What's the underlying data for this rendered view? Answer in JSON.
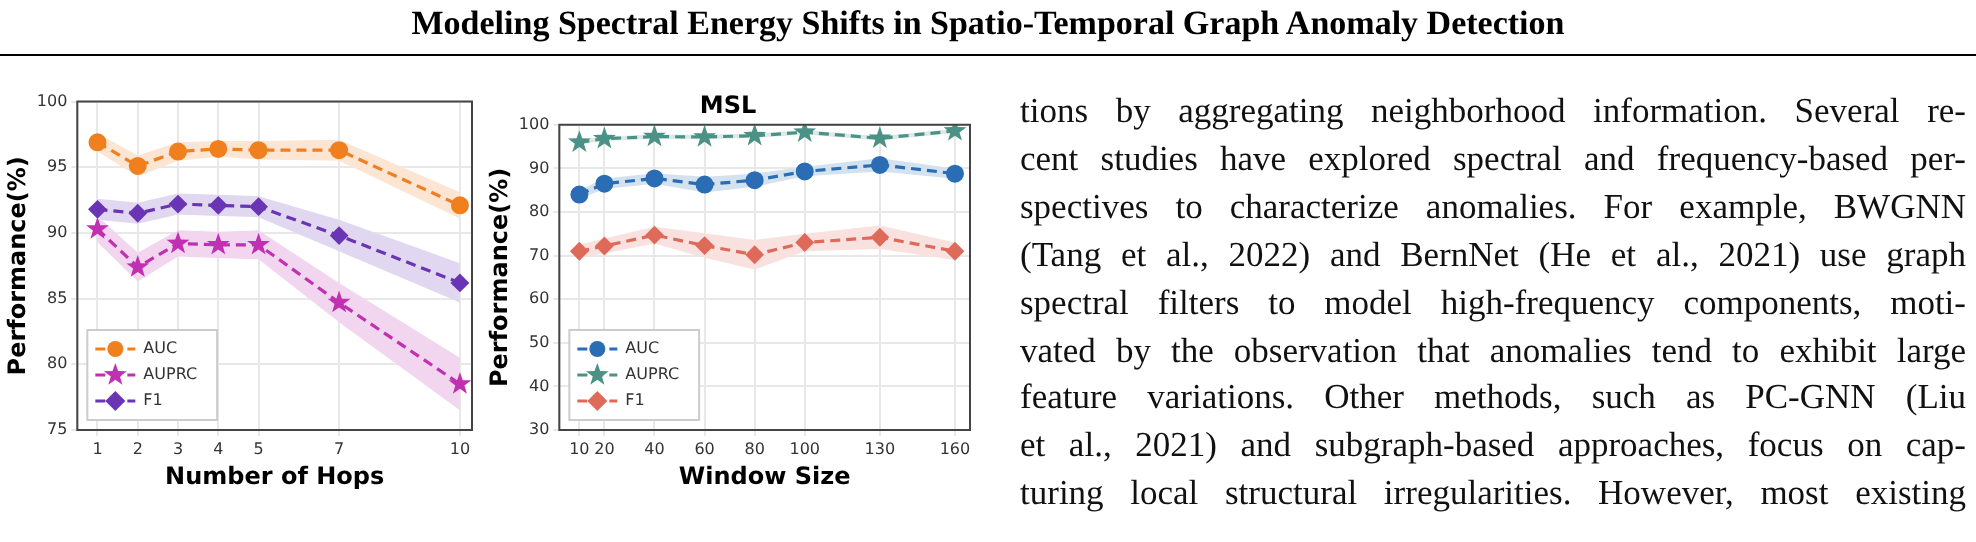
{
  "chart_data": [
    {
      "type": "line",
      "xlabel": "Number of Hops",
      "ylabel": "Performance(%)",
      "x": [
        1,
        2,
        3,
        4,
        5,
        7,
        10
      ],
      "xlim": [
        0.5,
        10.3
      ],
      "xticks": [
        1,
        2,
        3,
        4,
        5,
        7,
        10
      ],
      "ylim": [
        75,
        100
      ],
      "yticks": [
        75,
        80,
        85,
        90,
        95,
        100
      ],
      "grid": true,
      "legend": "bottom left",
      "line_style": "dashed",
      "series": [
        {
          "name": "AUC",
          "color": "#f07f1e",
          "marker": "circle",
          "values": [
            96.9,
            95.1,
            96.2,
            96.4,
            96.3,
            96.3,
            92.1
          ],
          "lower": [
            96.2,
            94.3,
            95.5,
            95.8,
            95.6,
            95.5,
            91.1
          ],
          "upper": [
            97.6,
            95.9,
            96.9,
            97.0,
            97.0,
            97.1,
            93.1
          ]
        },
        {
          "name": "AUPRC",
          "color": "#c030b0",
          "marker": "star",
          "values": [
            90.3,
            87.4,
            89.2,
            89.1,
            89.1,
            84.7,
            78.5
          ],
          "lower": [
            89.3,
            86.3,
            88.2,
            88.1,
            88.0,
            83.2,
            76.5
          ],
          "upper": [
            91.3,
            88.5,
            90.2,
            90.1,
            90.2,
            86.2,
            80.5
          ]
        },
        {
          "name": "F1",
          "color": "#6a35b5",
          "marker": "diamond",
          "values": [
            91.8,
            91.5,
            92.2,
            92.1,
            92.0,
            89.8,
            86.2
          ],
          "lower": [
            91.0,
            90.7,
            91.4,
            91.3,
            91.2,
            88.6,
            84.7
          ],
          "upper": [
            92.6,
            92.3,
            93.0,
            92.9,
            92.8,
            91.0,
            87.7
          ]
        }
      ]
    },
    {
      "type": "line",
      "title": "MSL",
      "xlabel": "Window Size",
      "ylabel": "Performance(%)",
      "x": [
        10,
        20,
        40,
        60,
        80,
        100,
        130,
        160
      ],
      "xlim": [
        2,
        166
      ],
      "xticks": [
        10,
        20,
        40,
        60,
        80,
        100,
        130,
        160
      ],
      "ylim": [
        30,
        100
      ],
      "yticks": [
        30,
        40,
        50,
        60,
        70,
        80,
        90,
        100
      ],
      "grid": true,
      "legend": "bottom left",
      "line_style": "dashed",
      "series": [
        {
          "name": "AUC",
          "color": "#2a6db5",
          "marker": "circle",
          "values": [
            84,
            86.5,
            87.7,
            86.3,
            87.3,
            89.3,
            90.8,
            88.8
          ],
          "lower": [
            83,
            85.3,
            86.5,
            84.5,
            85.8,
            88.2,
            89.3,
            87.6
          ],
          "upper": [
            85,
            87.7,
            88.9,
            88.1,
            88.8,
            90.4,
            92.3,
            90
          ]
        },
        {
          "name": "AUPRC",
          "color": "#4c9185",
          "marker": "star",
          "values": [
            96,
            96.8,
            97.3,
            97.2,
            97.5,
            98.3,
            96.9,
            98.6
          ],
          "lower": [
            95.5,
            96.3,
            96.8,
            96.7,
            97,
            97.8,
            96.4,
            98.1
          ],
          "upper": [
            96.5,
            97.3,
            97.8,
            97.7,
            98,
            98.8,
            97.4,
            99.1
          ]
        },
        {
          "name": "F1",
          "color": "#de6a5a",
          "marker": "diamond",
          "values": [
            71,
            72.2,
            74.7,
            72.3,
            70.2,
            73,
            74.2,
            71
          ],
          "lower": [
            69.5,
            70.5,
            72.8,
            69.5,
            66.8,
            71,
            71.5,
            69
          ],
          "upper": [
            72.5,
            73.9,
            76.6,
            75.1,
            73.6,
            75,
            76.9,
            73
          ]
        }
      ]
    },
    {
      "type": "other",
      "title": "Modeling Spectral Energy Shifts in Spatio-Temporal Graph Anomaly Detection",
      "annotations": [
        "tions by aggregating neighborhood information. Several re-",
        "cent studies have explored spectral and frequency-based per-",
        "spectives to characterize anomalies. For example, BWGNN",
        "(Tang et al., 2022) and BernNet (He et al., 2021) use graph",
        "spectral filters to model high-frequency components, moti-",
        "vated by the observation that anomalies tend to exhibit large",
        "feature variations. Other methods, such as PC-GNN (Liu",
        "et al., 2021) and subgraph-based approaches, focus on cap-",
        "turing local structural irregularities. However, most existing"
      ]
    }
  ]
}
